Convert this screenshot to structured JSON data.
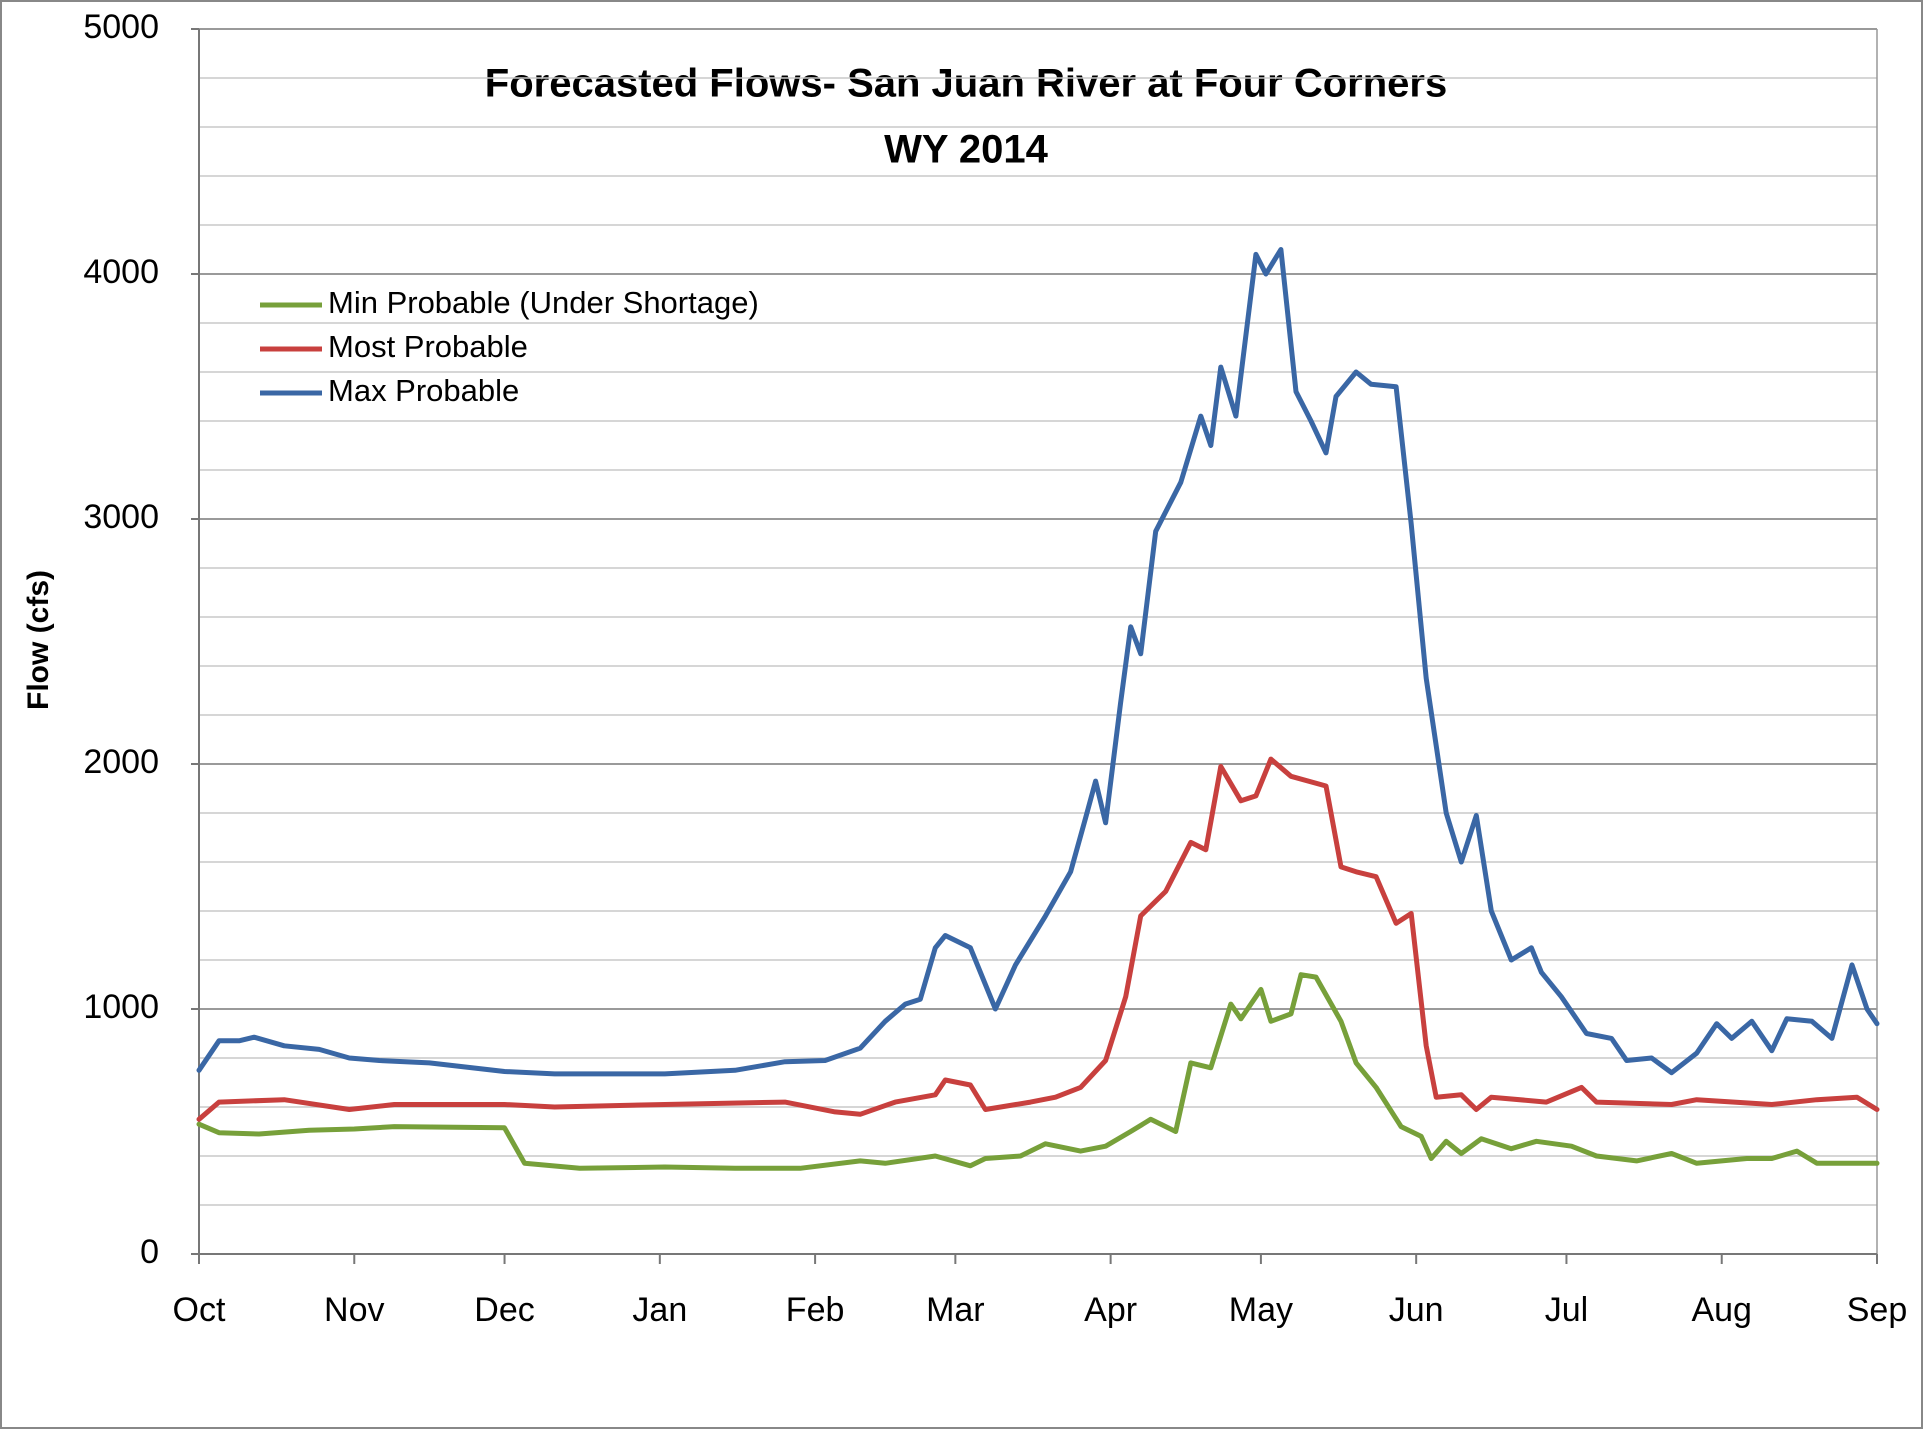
{
  "chart_data": {
    "type": "line",
    "title": [
      "Forecasted Flows- San Juan River at Four Corners",
      "WY 2014"
    ],
    "y_label": "Flow (cfs)",
    "xlim": [
      0,
      335
    ],
    "xticks": [
      {
        "value": 0,
        "label": "Oct"
      },
      {
        "value": 31,
        "label": "Nov"
      },
      {
        "value": 61,
        "label": "Dec"
      },
      {
        "value": 92,
        "label": "Jan"
      },
      {
        "value": 123,
        "label": "Feb"
      },
      {
        "value": 151,
        "label": "Mar"
      },
      {
        "value": 182,
        "label": "Apr"
      },
      {
        "value": 212,
        "label": "May"
      },
      {
        "value": 243,
        "label": "Jun"
      },
      {
        "value": 273,
        "label": "Jul"
      },
      {
        "value": 304,
        "label": "Aug"
      },
      {
        "value": 335,
        "label": "Sep"
      }
    ],
    "ylim": [
      0,
      5000
    ],
    "yticks": [
      0,
      1000,
      2000,
      3000,
      4000,
      5000
    ],
    "minor_yticks": [
      200,
      400,
      600,
      800,
      1200,
      1400,
      1600,
      1800,
      2200,
      2400,
      2600,
      2800,
      3200,
      3400,
      3600,
      3800,
      4200,
      4400,
      4600,
      4800
    ],
    "grid": true,
    "legend": "upper left",
    "series": [
      {
        "name": "Min Probable (Under Shortage)",
        "color": "#77a03a",
        "x": [
          0,
          4,
          12,
          22,
          31,
          39,
          61,
          65,
          76,
          93,
          107,
          120,
          132,
          137,
          147,
          154,
          157,
          164,
          169,
          176,
          181,
          186,
          190,
          195,
          198,
          202,
          206,
          208,
          212,
          214,
          218,
          220,
          223,
          228,
          231,
          235,
          240,
          244,
          246,
          249,
          252,
          256,
          262,
          267,
          274,
          279,
          287,
          294,
          299,
          309,
          314,
          319,
          323,
          331,
          335
        ],
        "values": [
          530,
          495,
          490,
          505,
          510,
          520,
          515,
          370,
          350,
          355,
          350,
          350,
          380,
          370,
          400,
          360,
          390,
          400,
          450,
          420,
          440,
          500,
          550,
          500,
          780,
          760,
          1020,
          960,
          1080,
          950,
          980,
          1140,
          1130,
          950,
          780,
          680,
          520,
          480,
          390,
          460,
          410,
          470,
          430,
          460,
          440,
          400,
          380,
          410,
          370,
          390,
          390,
          420,
          370,
          370,
          370
        ]
      },
      {
        "name": "Most Probable",
        "color": "#c8403e",
        "x": [
          0,
          4,
          17,
          30,
          39,
          61,
          71,
          93,
          117,
          127,
          132,
          139,
          147,
          149,
          154,
          157,
          166,
          171,
          176,
          181,
          185,
          188,
          193,
          198,
          201,
          204,
          208,
          211,
          214,
          218,
          225,
          228,
          231,
          235,
          239,
          242,
          245,
          247,
          252,
          255,
          258,
          269,
          276,
          279,
          294,
          299,
          314,
          323,
          331,
          335
        ],
        "values": [
          550,
          620,
          630,
          590,
          610,
          610,
          600,
          610,
          620,
          580,
          570,
          620,
          650,
          710,
          690,
          590,
          620,
          640,
          680,
          790,
          1050,
          1380,
          1480,
          1680,
          1650,
          1990,
          1850,
          1870,
          2020,
          1950,
          1910,
          1580,
          1560,
          1540,
          1350,
          1390,
          850,
          640,
          650,
          590,
          640,
          620,
          680,
          620,
          610,
          630,
          610,
          630,
          640,
          590
        ]
      },
      {
        "name": "Max Probable",
        "color": "#3a67a5",
        "x": [
          0,
          4,
          8,
          11,
          17,
          24,
          30,
          36,
          46,
          61,
          71,
          93,
          107,
          117,
          125,
          132,
          137,
          141,
          144,
          147,
          149,
          154,
          159,
          163,
          169,
          174,
          177,
          179,
          181,
          184,
          186,
          188,
          191,
          196,
          200,
          202,
          204,
          207,
          211,
          213,
          216,
          219,
          222,
          225,
          227,
          231,
          234,
          239,
          242,
          245,
          249,
          252,
          255,
          258,
          262,
          266,
          268,
          272,
          277,
          282,
          285,
          290,
          294,
          299,
          303,
          306,
          310,
          314,
          317,
          322,
          326,
          330,
          333,
          335
        ],
        "values": [
          750,
          870,
          870,
          885,
          850,
          835,
          800,
          790,
          780,
          745,
          735,
          735,
          750,
          785,
          790,
          840,
          950,
          1020,
          1040,
          1250,
          1300,
          1250,
          1000,
          1180,
          1380,
          1560,
          1780,
          1930,
          1760,
          2250,
          2560,
          2450,
          2950,
          3150,
          3420,
          3300,
          3620,
          3420,
          4080,
          4000,
          4100,
          3520,
          3400,
          3270,
          3500,
          3600,
          3550,
          3540,
          2980,
          2350,
          1800,
          1600,
          1790,
          1400,
          1200,
          1250,
          1150,
          1050,
          900,
          880,
          790,
          800,
          740,
          820,
          940,
          880,
          950,
          830,
          960,
          950,
          880,
          1180,
          1000,
          940
        ]
      }
    ]
  }
}
